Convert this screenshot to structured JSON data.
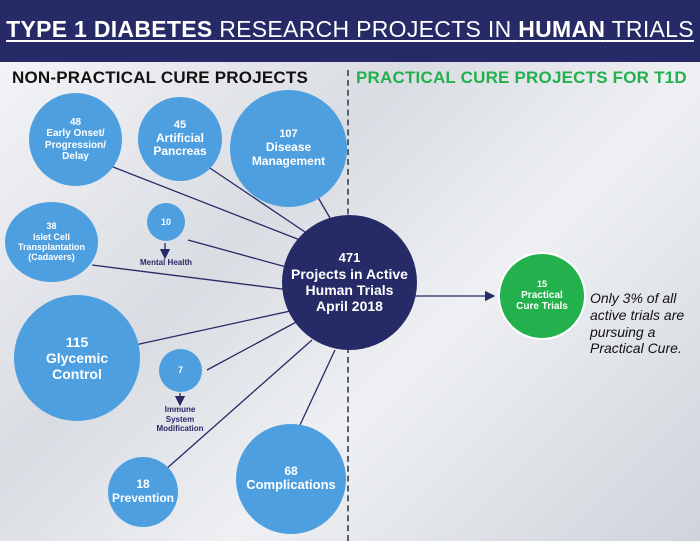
{
  "header": {
    "title_bold_1": "TYPE 1 DIABETES",
    "title_light_1": " RESEARCH PROJECTS IN ",
    "title_bold_2": "HUMAN",
    "title_light_2": " TRIALS"
  },
  "sections": {
    "left": "NON-PRACTICAL CURE PROJECTS",
    "right": "PRACTICAL CURE PROJECTS FOR T1D"
  },
  "center": {
    "count": "471",
    "label_1": "Projects in Active",
    "label_2": "Human Trials",
    "label_3": "April 2018"
  },
  "categories": [
    {
      "id": "early-onset",
      "count": "48",
      "label": "Early Onset/ Progression/ Delay"
    },
    {
      "id": "artificial-pancreas",
      "count": "45",
      "label": "Artificial Pancreas"
    },
    {
      "id": "disease-management",
      "count": "107",
      "label": "Disease Management"
    },
    {
      "id": "islet-cell",
      "count": "38",
      "label": "Islet Cell Transplantation (Cadavers)"
    },
    {
      "id": "mental-health",
      "count": "10",
      "label": "Mental Health"
    },
    {
      "id": "glycemic-control",
      "count": "115",
      "label": "Glycemic Control"
    },
    {
      "id": "immune-system",
      "count": "7",
      "label": "Immune System Modification"
    },
    {
      "id": "prevention",
      "count": "18",
      "label": "Prevention"
    },
    {
      "id": "complications",
      "count": "68",
      "label": "Complications"
    }
  ],
  "practical": {
    "count": "15",
    "label": "Practical Cure Trials"
  },
  "note": "Only 3% of all active trials are pursuing a Practical Cure.",
  "colors": {
    "navy": "#262a66",
    "blue": "#4d9fe0",
    "green": "#22b14c"
  }
}
